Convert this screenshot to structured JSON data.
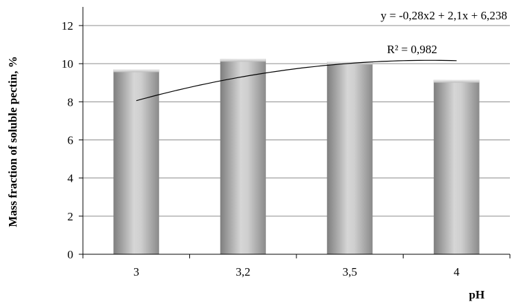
{
  "chart_data": {
    "type": "bar",
    "categories": [
      "3",
      "3,2",
      "3,5",
      "4"
    ],
    "values": [
      9.7,
      10.25,
      10.1,
      9.15
    ],
    "title": "",
    "xlabel": "pH",
    "ylabel": "Mass fraction of soluble pectin, %",
    "ylim": [
      0,
      12
    ],
    "y_ticks": [
      "0",
      "2",
      "4",
      "6",
      "8",
      "10",
      "12"
    ],
    "grid": true,
    "legend": "none",
    "trendline": {
      "type": "polynomial",
      "coefficients": {
        "a": -0.28,
        "b": 2.1,
        "c": 6.238
      },
      "equation": "y = -0,28x2 + 2,1x + 6,238",
      "r_squared": "R² = 0,982"
    },
    "colors": {
      "bar_dark": "#7a7a7a",
      "bar_light": "#d8d8d8",
      "grid": "#8c8c8c"
    }
  }
}
